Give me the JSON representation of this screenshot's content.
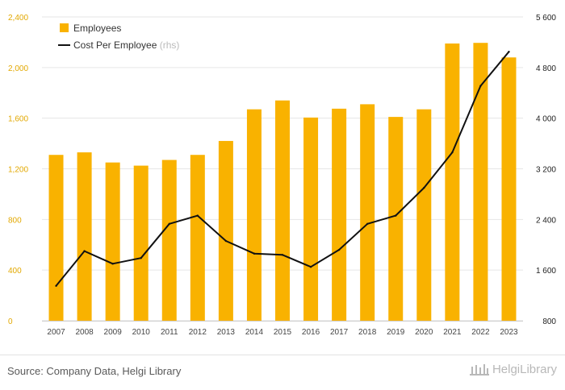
{
  "colors": {
    "bar": "#F9B200",
    "line": "#111111",
    "left_axis": "#E2A800",
    "right_axis": "#222222",
    "grid": "#e6e6e6"
  },
  "legend": {
    "employees_label": "Employees",
    "cost_label": "Cost Per Employee",
    "cost_suffix": "(rhs)"
  },
  "footer": {
    "source": "Source: Company Data, Helgi Library",
    "logo_text": "HelgiLibrary"
  },
  "chart_data": {
    "type": "bar+line",
    "categories": [
      "2007",
      "2008",
      "2009",
      "2010",
      "2011",
      "2012",
      "2013",
      "2014",
      "2015",
      "2016",
      "2017",
      "2018",
      "2019",
      "2020",
      "2021",
      "2022",
      "2023"
    ],
    "series": [
      {
        "name": "Employees",
        "type": "bar",
        "axis": "left",
        "values": [
          1310,
          1330,
          1250,
          1225,
          1270,
          1310,
          1420,
          1670,
          1740,
          1605,
          1675,
          1710,
          1610,
          1670,
          2190,
          2195,
          2080
        ]
      },
      {
        "name": "Cost Per Employee",
        "type": "line",
        "axis": "right",
        "values": [
          1350,
          1900,
          1700,
          1790,
          2330,
          2460,
          2060,
          1860,
          1840,
          1650,
          1920,
          2330,
          2460,
          2900,
          3460,
          4510,
          5050
        ]
      }
    ],
    "left_axis": {
      "min": 0,
      "max": 2400,
      "ticks": [
        0,
        400,
        800,
        1200,
        1600,
        2000,
        2400
      ],
      "tick_labels": [
        "0",
        "400",
        "800",
        "1,200",
        "1,600",
        "2,000",
        "2,400"
      ]
    },
    "right_axis": {
      "min": 800,
      "max": 5600,
      "ticks": [
        800,
        1600,
        2400,
        3200,
        4000,
        4800,
        5600
      ],
      "tick_labels": [
        "800",
        "1 600",
        "2 400",
        "3 200",
        "4 000",
        "4 800",
        "5 600"
      ]
    },
    "grid": true,
    "legend_position": "top-left"
  }
}
